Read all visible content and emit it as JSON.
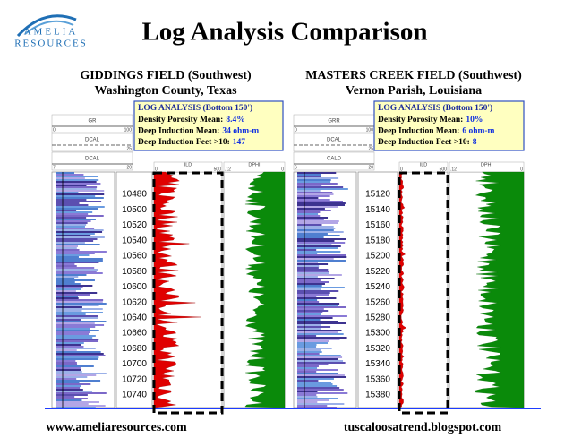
{
  "logo": {
    "line1": "AMELIA",
    "line2": "RESOURCES"
  },
  "title": "Log Analysis Comparison",
  "panels": [
    {
      "field": "GIDDINGS FIELD (Southwest)",
      "location": "Washington County, Texas",
      "analysis": {
        "heading": "LOG ANALYSIS (Bottom 150')",
        "rows": [
          {
            "label": "Density Porosity Mean:",
            "value": "8.4%"
          },
          {
            "label": "Deep Induction Mean:",
            "value": "34 ohm-m"
          },
          {
            "label": "Deep Induction Feet >10:",
            "value": "147"
          }
        ]
      },
      "left_headers": [
        {
          "name": "GR",
          "min": "0",
          "max": "100"
        },
        {
          "name": "DCAL",
          "min": "",
          "max": "25"
        },
        {
          "name": "DCAL",
          "min": "7",
          "max": "20"
        }
      ],
      "ild_header": {
        "name": "ILD",
        "min": "0",
        "max": "500"
      },
      "dphi_header": {
        "name": "DPHI",
        "min": ".12",
        "max": "0"
      },
      "depths": [
        "10480",
        "10500",
        "10520",
        "10540",
        "10560",
        "10580",
        "10600",
        "10620",
        "10640",
        "10660",
        "10680",
        "10700",
        "10720",
        "10740"
      ]
    },
    {
      "field": "MASTERS CREEK FIELD (Southwest)",
      "location": "Vernon Parish, Louisiana",
      "analysis": {
        "heading": "LOG ANALYSIS (Bottom 150')",
        "rows": [
          {
            "label": "Density Porosity Mean:",
            "value": "10%"
          },
          {
            "label": "Deep Induction Mean:",
            "value": "6 ohm-m"
          },
          {
            "label": "Deep Induction Feet >10:",
            "value": "8"
          }
        ]
      },
      "left_headers": [
        {
          "name": "GRR",
          "min": "0",
          "max": "100"
        },
        {
          "name": "DCAL",
          "min": "",
          "max": "25"
        },
        {
          "name": "CALD",
          "min": "6",
          "max": "20"
        }
      ],
      "ild_header": {
        "name": "ILD",
        "min": "0",
        "max": "500"
      },
      "dphi_header": {
        "name": "DPHI",
        "min": ".12",
        "max": "0"
      },
      "depths": [
        "15120",
        "15140",
        "15160",
        "15180",
        "15200",
        "15220",
        "15240",
        "15260",
        "15280",
        "15300",
        "15320",
        "15340",
        "15360",
        "15380"
      ]
    }
  ],
  "footer": {
    "left": "www.ameliaresources.com",
    "right": "tuscaloosatrend.blogspot.com"
  }
}
